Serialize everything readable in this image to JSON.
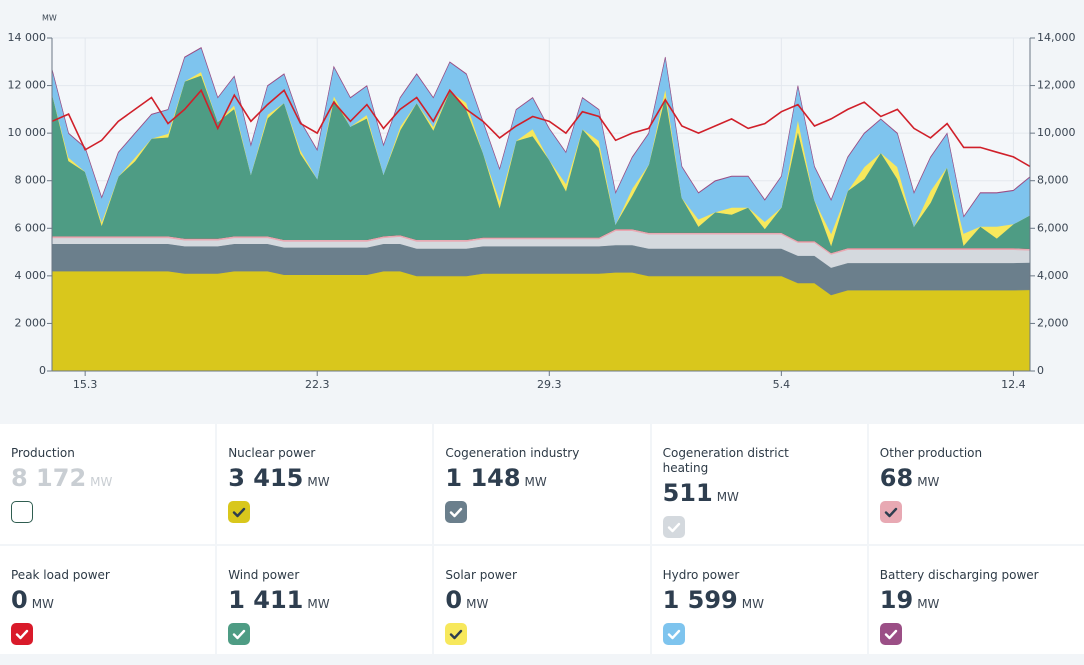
{
  "chart_data": {
    "type": "stacked-area",
    "y_label": "MW",
    "grid": true,
    "categories": [
      null,
      null,
      "15.3",
      null,
      null,
      null,
      null,
      null,
      null,
      null,
      null,
      null,
      null,
      null,
      null,
      null,
      "22.3",
      null,
      null,
      null,
      null,
      null,
      null,
      null,
      null,
      null,
      null,
      null,
      null,
      null,
      "29.3",
      null,
      null,
      null,
      null,
      null,
      null,
      null,
      null,
      null,
      null,
      null,
      null,
      null,
      "5.4",
      null,
      null,
      null,
      null,
      null,
      null,
      null,
      null,
      null,
      null,
      null,
      null,
      null,
      "12.4",
      null
    ],
    "ylim": [
      0,
      14000
    ],
    "yticks": [
      0,
      {
        "value": 2000,
        "label": "2 000"
      },
      {
        "value": 4000,
        "label": "4 000"
      },
      {
        "value": 6000,
        "label": "6 000"
      },
      {
        "value": 8000,
        "label": "8 000"
      },
      {
        "value": 10000,
        "label": "10 000"
      },
      {
        "value": 12000,
        "label": "12 000"
      },
      {
        "value": 14000,
        "label": "14 000"
      }
    ],
    "y2lim": [
      0,
      14000
    ],
    "y2ticks": [
      0,
      {
        "value": 2000,
        "label": "2,000"
      },
      {
        "value": 4000,
        "label": "4,000"
      },
      {
        "value": 6000,
        "label": "6,000"
      },
      {
        "value": 8000,
        "label": "8,000"
      },
      {
        "value": 10000,
        "label": "10,000"
      },
      {
        "value": 12000,
        "label": "12,000"
      },
      {
        "value": 14000,
        "label": "14,000"
      }
    ],
    "series": [
      {
        "name": "Nuclear power",
        "color": "#d9c71c",
        "checked": true,
        "current": "3 415",
        "values": [
          4200,
          4200,
          4200,
          4200,
          4200,
          4200,
          4200,
          4200,
          4100,
          4100,
          4100,
          4200,
          4200,
          4200,
          4050,
          4050,
          4050,
          4050,
          4050,
          4050,
          4200,
          4200,
          4000,
          4000,
          4000,
          4000,
          4100,
          4100,
          4100,
          4100,
          4100,
          4100,
          4100,
          4100,
          4150,
          4150,
          4000,
          4000,
          4000,
          4000,
          4000,
          4000,
          4000,
          4000,
          4000,
          3700,
          3700,
          3200,
          3400,
          3400,
          3400,
          3400,
          3400,
          3400,
          3400,
          3400,
          3400,
          3400,
          3400,
          3415
        ]
      },
      {
        "name": "Cogeneration industry",
        "color": "#6b7f8c",
        "checked": true,
        "current": "1 148",
        "values": [
          1150,
          1150,
          1150,
          1150,
          1150,
          1150,
          1150,
          1150,
          1150,
          1150,
          1150,
          1150,
          1150,
          1150,
          1150,
          1150,
          1150,
          1150,
          1150,
          1150,
          1150,
          1150,
          1150,
          1150,
          1150,
          1150,
          1150,
          1150,
          1150,
          1150,
          1150,
          1150,
          1150,
          1150,
          1150,
          1150,
          1150,
          1150,
          1150,
          1150,
          1150,
          1150,
          1150,
          1150,
          1150,
          1150,
          1150,
          1150,
          1150,
          1150,
          1150,
          1150,
          1150,
          1150,
          1150,
          1150,
          1150,
          1150,
          1150,
          1148
        ]
      },
      {
        "name": "Cogeneration district heating",
        "color": "#d4d9de",
        "checked": true,
        "current": "511",
        "values": [
          250,
          250,
          250,
          250,
          250,
          250,
          250,
          250,
          250,
          250,
          250,
          250,
          250,
          250,
          250,
          250,
          250,
          250,
          250,
          250,
          250,
          300,
          300,
          300,
          300,
          300,
          300,
          300,
          300,
          300,
          300,
          300,
          300,
          300,
          600,
          600,
          600,
          600,
          600,
          600,
          600,
          600,
          600,
          600,
          600,
          550,
          550,
          550,
          550,
          550,
          550,
          550,
          550,
          550,
          550,
          550,
          550,
          550,
          550,
          511
        ]
      },
      {
        "name": "Other production",
        "color": "#e8a9b3",
        "checked": true,
        "current": "68",
        "values": [
          70,
          70,
          70,
          70,
          70,
          70,
          70,
          70,
          70,
          70,
          70,
          70,
          70,
          70,
          70,
          70,
          70,
          70,
          70,
          70,
          70,
          70,
          70,
          70,
          70,
          70,
          70,
          70,
          70,
          70,
          70,
          70,
          70,
          70,
          70,
          70,
          70,
          70,
          70,
          70,
          70,
          70,
          70,
          70,
          70,
          70,
          70,
          70,
          70,
          70,
          70,
          70,
          70,
          70,
          70,
          70,
          70,
          70,
          70,
          68
        ]
      },
      {
        "name": "Peak load power",
        "color": "#d91a2a",
        "checked": true,
        "current": "0",
        "values": [
          0,
          0,
          0,
          0,
          0,
          0,
          0,
          0,
          0,
          0,
          0,
          0,
          0,
          0,
          0,
          0,
          0,
          0,
          0,
          0,
          0,
          0,
          0,
          0,
          0,
          0,
          0,
          0,
          0,
          0,
          0,
          0,
          0,
          0,
          0,
          0,
          0,
          0,
          0,
          0,
          0,
          0,
          0,
          0,
          0,
          0,
          0,
          0,
          0,
          0,
          0,
          0,
          0,
          0,
          0,
          0,
          0,
          0,
          0,
          0
        ]
      },
      {
        "name": "Wind power",
        "color": "#4e9c84",
        "checked": true,
        "current": "1 411",
        "values": [
          6010,
          3160,
          2710,
          460,
          2510,
          3160,
          4110,
          4160,
          6610,
          6860,
          4910,
          5360,
          2610,
          4960,
          5760,
          3610,
          2560,
          5910,
          4760,
          5110,
          2610,
          4410,
          5760,
          4610,
          6260,
          5460,
          3560,
          1260,
          4060,
          4260,
          3260,
          1960,
          4560,
          3760,
          210,
          1410,
          2860,
          5760,
          1460,
          260,
          860,
          760,
          1060,
          160,
          1060,
          4610,
          1710,
          310,
          2410,
          2910,
          4010,
          2910,
          910,
          1910,
          3410,
          110,
          910,
          410,
          1010,
          1411
        ]
      },
      {
        "name": "Solar power",
        "color": "#f7e85c",
        "checked": true,
        "current": "0",
        "values": [
          0,
          150,
          0,
          150,
          0,
          150,
          0,
          150,
          0,
          150,
          0,
          150,
          0,
          150,
          0,
          150,
          0,
          150,
          0,
          150,
          0,
          150,
          0,
          150,
          0,
          300,
          0,
          300,
          0,
          300,
          0,
          300,
          0,
          300,
          0,
          300,
          0,
          300,
          0,
          300,
          0,
          300,
          0,
          300,
          0,
          500,
          0,
          500,
          0,
          500,
          0,
          500,
          0,
          500,
          0,
          500,
          0,
          500,
          0,
          0
        ]
      },
      {
        "name": "Hydro power",
        "color": "#7ec4ee",
        "checked": true,
        "current": "1 599",
        "values": [
          1000,
          1000,
          1000,
          1000,
          1000,
          1000,
          1000,
          1000,
          1000,
          1000,
          1000,
          1200,
          1200,
          1200,
          1200,
          1200,
          1200,
          1200,
          1200,
          1200,
          1200,
          1200,
          1200,
          1200,
          1200,
          1200,
          1300,
          1300,
          1300,
          1300,
          1300,
          1300,
          1300,
          1300,
          1300,
          1300,
          1300,
          1300,
          1300,
          1100,
          1300,
          1300,
          1300,
          900,
          1300,
          1400,
          1400,
          1400,
          1400,
          1400,
          1400,
          1400,
          1400,
          1400,
          1400,
          700,
          1400,
          1400,
          1400,
          1599
        ]
      },
      {
        "name": "Battery discharging power",
        "color": "#9b4f86",
        "checked": true,
        "current": "19",
        "values": [
          20,
          20,
          20,
          20,
          20,
          20,
          20,
          20,
          20,
          20,
          20,
          20,
          20,
          20,
          20,
          20,
          20,
          20,
          20,
          20,
          20,
          20,
          20,
          20,
          20,
          20,
          20,
          20,
          20,
          20,
          20,
          20,
          20,
          20,
          20,
          20,
          20,
          20,
          20,
          20,
          20,
          20,
          20,
          20,
          20,
          20,
          20,
          20,
          20,
          20,
          20,
          20,
          20,
          20,
          20,
          20,
          20,
          20,
          20,
          19
        ]
      }
    ],
    "line": {
      "color": "#d0202a",
      "values": [
        10500,
        10800,
        9300,
        9700,
        10500,
        11000,
        11500,
        10400,
        11000,
        11800,
        10200,
        11600,
        10500,
        11200,
        11800,
        10400,
        10000,
        11300,
        10500,
        11200,
        10200,
        11000,
        11500,
        10500,
        11800,
        11000,
        10500,
        9800,
        10300,
        10700,
        10500,
        10000,
        10900,
        10700,
        9700,
        10000,
        10200,
        11400,
        10300,
        10000,
        10300,
        10600,
        10200,
        10400,
        10900,
        11200,
        10300,
        10600,
        11000,
        11300,
        10700,
        11000,
        10200,
        9800,
        10400,
        9400,
        9400,
        9200,
        9000,
        8600
      ]
    }
  },
  "production": {
    "label": "Production",
    "value": "8 172",
    "checked": false
  },
  "unit": "MW"
}
